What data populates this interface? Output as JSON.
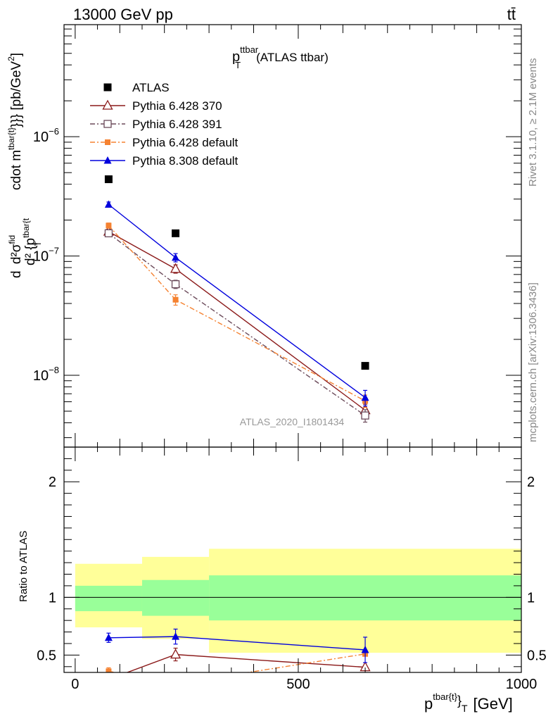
{
  "header": {
    "left": "13000 GeV pp",
    "right": "tt̄"
  },
  "side_labels": {
    "rivet": "Rivet 3.1.10, ≥ 2.1M events",
    "mcplots": "mcplots.cern.ch [arXiv:1306.3436]"
  },
  "watermark": "ATLAS_2020_I1801434",
  "colors": {
    "ATLAS": "#000000",
    "Pythia 6.428 370": "#8b1a1a",
    "Pythia 6.428 391": "#6b4a5a",
    "Pythia 6.428 default": "#f58231",
    "Pythia 8.308 default": "#0000dd",
    "band_outer": "#ffff99",
    "band_inner": "#99ff99"
  },
  "chart_data": [
    {
      "type": "scatter",
      "title": "p_T^{ttbar} (ATLAS ttbar)",
      "title_parts": {
        "main": "p",
        "sup": "ttbar",
        "sub": "T",
        "rest": "(ATLAS ttbar)"
      },
      "ylabel": "d d²σ^{fid} / d² {p_T^{tbar{t}}} cdot m^{tbar{t}}}} [pb/GeV²]",
      "ylabel_parts": {
        "lead": "d",
        "frac_num": "d²σ",
        "frac_num_sup": "fid",
        "frac_den": "d² {p",
        "frac_den_sup": "tbar{t",
        "after_sub": "T",
        "mid": "cdot m",
        "mid_sup": "tbar{t}",
        "tail": "}}} [pb/GeV",
        "tail_sup": "2",
        "end": "]"
      },
      "yscale": "log",
      "ylim": [
        2.5e-09,
        8.7e-06
      ],
      "ytick_labels": [
        {
          "value": 1e-06,
          "base": "10",
          "exp": "−6"
        },
        {
          "value": 1e-07,
          "base": "10",
          "exp": "−7"
        },
        {
          "value": 1e-08,
          "base": "10",
          "exp": "−8"
        }
      ],
      "legend_position": "top-left",
      "series": [
        {
          "name": "ATLAS",
          "marker": "square",
          "line": "none",
          "x": [
            75,
            225,
            650
          ],
          "y": [
            4.4e-07,
            1.55e-07,
            1.2e-08
          ]
        },
        {
          "name": "Pythia 6.428 370",
          "marker": "open-triangle",
          "line": "solid",
          "x": [
            75,
            225,
            650
          ],
          "y": [
            1.6e-07,
            7.8e-08,
            5.1e-09
          ],
          "yerr": [
            0.05,
            0.08,
            0.12
          ]
        },
        {
          "name": "Pythia 6.428 391",
          "marker": "open-square",
          "line": "dashdot",
          "x": [
            75,
            225,
            650
          ],
          "y": [
            1.55e-07,
            5.8e-08,
            4.6e-09
          ],
          "yerr": [
            0.05,
            0.08,
            0.12
          ]
        },
        {
          "name": "Pythia 6.428 default",
          "marker": "filled-square-small",
          "line": "dashdot",
          "x": [
            75,
            225,
            650
          ],
          "y": [
            1.8e-07,
            4.3e-08,
            6.1e-09
          ],
          "yerr": [
            0.05,
            0.1,
            0.12
          ]
        },
        {
          "name": "Pythia 8.308 default",
          "marker": "filled-triangle",
          "line": "solid",
          "x": [
            75,
            225,
            650
          ],
          "y": [
            2.7e-07,
            9.7e-08,
            6.5e-09
          ],
          "yerr": [
            0.05,
            0.08,
            0.15
          ]
        }
      ]
    },
    {
      "type": "line",
      "ylabel": "Ratio to ATLAS",
      "xlabel": "p^{tbar{t}}}_T [GeV]",
      "xlabel_parts": {
        "main": "p",
        "sup": "tbar{t}",
        "mid": "}",
        "sub": "T",
        "rest": "[GeV]"
      },
      "xlim": [
        -25,
        1000
      ],
      "ylim": [
        0.35,
        2.3
      ],
      "xticks": [
        0,
        500,
        1000
      ],
      "yticks": [
        0.5,
        1,
        2
      ],
      "bins": [
        [
          0,
          150
        ],
        [
          150,
          300
        ],
        [
          300,
          1000
        ]
      ],
      "band_outer": [
        [
          0.74,
          1.29
        ],
        [
          0.64,
          1.35
        ],
        [
          0.52,
          1.42
        ]
      ],
      "band_inner": [
        [
          0.88,
          1.1
        ],
        [
          0.84,
          1.15
        ],
        [
          0.8,
          1.19
        ]
      ],
      "series": [
        {
          "name": "Pythia 6.428 370",
          "x": [
            75,
            225,
            650
          ],
          "y": [
            0.29,
            0.505,
            0.395
          ],
          "yerr": [
            0.0,
            0.055,
            0.0
          ]
        },
        {
          "name": "Pythia 6.428 default",
          "x": [
            75,
            225,
            650
          ],
          "y": [
            0.36,
            0.25,
            0.51
          ],
          "yerr": [
            0.03,
            0.0,
            0.0
          ]
        },
        {
          "name": "Pythia 8.308 default",
          "x": [
            75,
            225,
            650
          ],
          "y": [
            0.65,
            0.66,
            0.545
          ],
          "yerr": [
            0.04,
            0.065,
            0.11
          ]
        }
      ]
    }
  ]
}
